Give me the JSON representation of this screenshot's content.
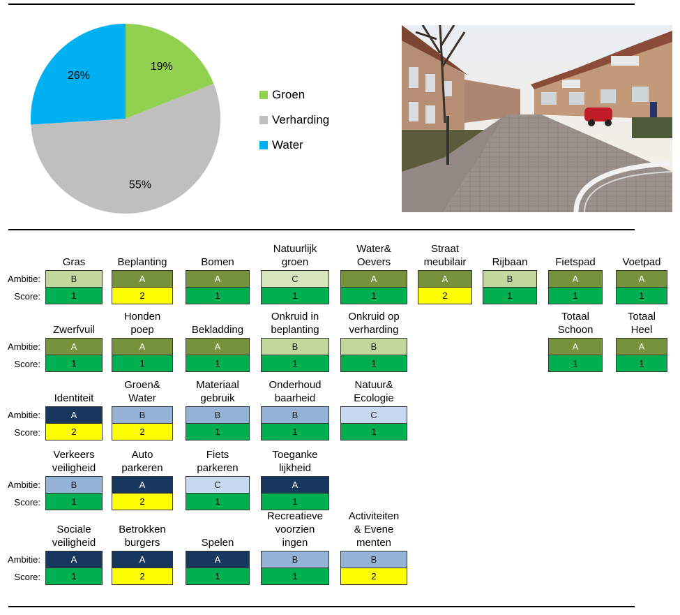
{
  "pie": {
    "chart_data": {
      "type": "pie",
      "labels": [
        "Groen",
        "Verharding",
        "Water"
      ],
      "values": [
        19,
        55,
        26
      ],
      "value_labels": [
        "19%",
        "55%",
        "26%"
      ],
      "colors": [
        "#92d050",
        "#bfbfbf",
        "#00b0f0"
      ],
      "legend_position": "right"
    }
  },
  "legend": [
    {
      "label": "Groen",
      "color": "#92d050"
    },
    {
      "label": "Verharding",
      "color": "#bfbfbf"
    },
    {
      "label": "Water",
      "color": "#00b0f0"
    }
  ],
  "row_labels": {
    "ambitie": "Ambitie:",
    "score": "Score:"
  },
  "colors": {
    "score_1": "#00b050",
    "score_2": "#ffff00",
    "green_A": "#76923c",
    "green_B": "#c3d69b",
    "green_C": "#d7e4bc",
    "blue_A": "#17375e",
    "blue_B": "#95b3d7",
    "blue_C": "#c6d9f1"
  },
  "groups": [
    {
      "items": [
        {
          "name": "Gras",
          "ambitie": "B",
          "score": "1"
        },
        {
          "name": "Beplanting",
          "ambitie": "A",
          "score": "2"
        },
        {
          "name": "Bomen",
          "ambitie": "A",
          "score": "1"
        },
        {
          "name": "Natuurlijk\ngroen",
          "ambitie": "C",
          "score": "1"
        },
        {
          "name": "Water&\nOevers",
          "ambitie": "A",
          "score": "1"
        },
        {
          "name": "Straat\nmeubilair",
          "ambitie": "A",
          "score": "2"
        },
        {
          "name": "Rijbaan",
          "ambitie": "B",
          "score": "1"
        },
        {
          "name": "Fietspad",
          "ambitie": "A",
          "score": "1"
        },
        {
          "name": "Voetpad",
          "ambitie": "A",
          "score": "1"
        }
      ]
    },
    {
      "items": [
        {
          "name": "Zwerfvuil",
          "ambitie": "A",
          "score": "1"
        },
        {
          "name": "Honden\npoep",
          "ambitie": "A",
          "score": "1"
        },
        {
          "name": "Bekladding",
          "ambitie": "A",
          "score": "1"
        },
        {
          "name": "Onkruid in\nbeplanting",
          "ambitie": "B",
          "score": "1"
        },
        {
          "name": "Onkruid op\nverharding",
          "ambitie": "B",
          "score": "1"
        },
        {
          "name": "Totaal\nSchoon",
          "ambitie": "A",
          "score": "1"
        },
        {
          "name": "Totaal\nHeel",
          "ambitie": "A",
          "score": "1"
        }
      ]
    },
    {
      "items": [
        {
          "name": "Identiteit",
          "ambitie": "A",
          "score": "2"
        },
        {
          "name": "Groen&\nWater",
          "ambitie": "B",
          "score": "2"
        },
        {
          "name": "Materiaal\ngebruik",
          "ambitie": "B",
          "score": "1"
        },
        {
          "name": "Onderhoud\nbaarheid",
          "ambitie": "B",
          "score": "1"
        },
        {
          "name": "Natuur&\nEcologie",
          "ambitie": "C",
          "score": "1"
        }
      ]
    },
    {
      "items": [
        {
          "name": "Verkeers\nveiligheid",
          "ambitie": "B",
          "score": "1"
        },
        {
          "name": "Auto\nparkeren",
          "ambitie": "A",
          "score": "2"
        },
        {
          "name": "Fiets\nparkeren",
          "ambitie": "C",
          "score": "1"
        },
        {
          "name": "Toeganke\nlijkheid",
          "ambitie": "A",
          "score": "1"
        }
      ]
    },
    {
      "items": [
        {
          "name": "Sociale\nveiligheid",
          "ambitie": "A",
          "score": "1"
        },
        {
          "name": "Betrokken\nburgers",
          "ambitie": "A",
          "score": "2"
        },
        {
          "name": "Spelen",
          "ambitie": "A",
          "score": "1"
        },
        {
          "name": "Recreatieve\nvoorzien\ningen",
          "ambitie": "B",
          "score": "1"
        },
        {
          "name": "Activiteiten\n& Evene\nmenten",
          "ambitie": "B",
          "score": "2"
        }
      ]
    }
  ]
}
